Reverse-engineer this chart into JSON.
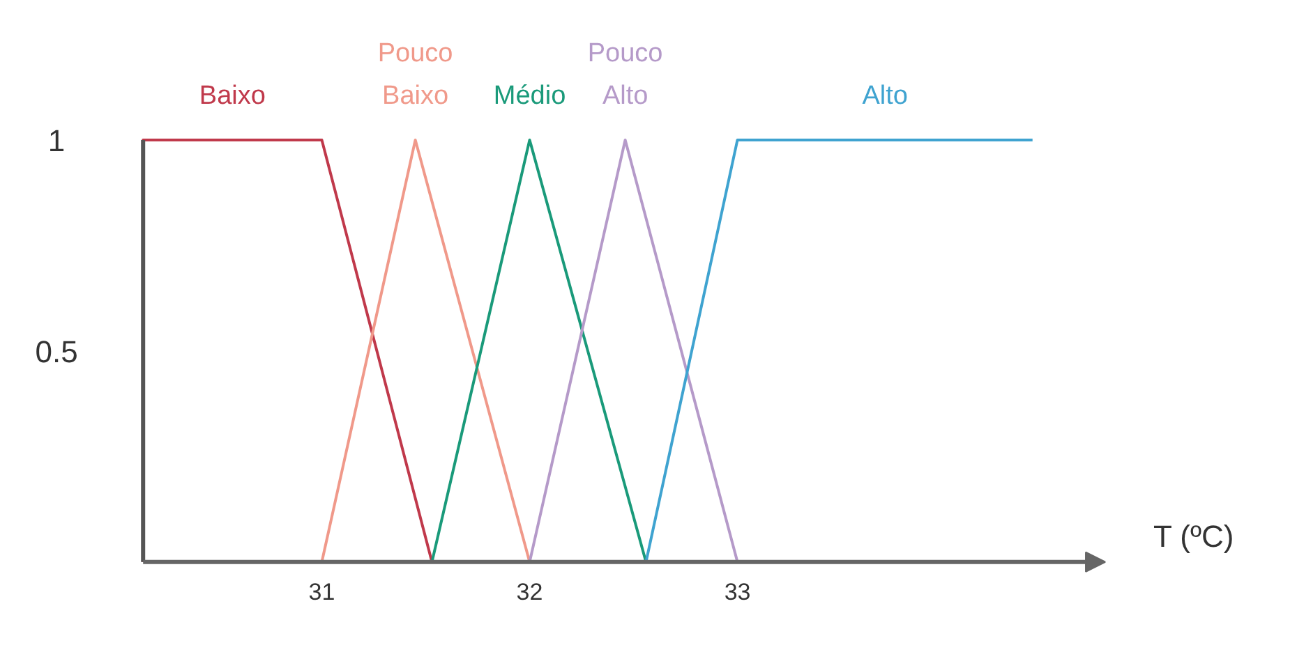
{
  "chart_data": {
    "type": "line",
    "xlabel": "T (ºC)",
    "xlim": [
      30.14,
      34.77
    ],
    "ylim": [
      0,
      1
    ],
    "xticks": [
      31,
      32,
      33
    ],
    "yticks": [
      0.5,
      1
    ],
    "grid": false,
    "marker": "none",
    "line_style": "solid",
    "series": [
      {
        "name": "Baixo",
        "color": "#c0394b",
        "x": [
          30.14,
          30.14,
          31,
          31.53
        ],
        "values": [
          0,
          1,
          1,
          0
        ]
      },
      {
        "name": "Pouco Baixo",
        "color": "#f0998a",
        "x": [
          31,
          31.45,
          32
        ],
        "values": [
          0,
          1,
          0
        ]
      },
      {
        "name": "Médio",
        "color": "#1a9a7a",
        "x": [
          31.53,
          32,
          32.56
        ],
        "values": [
          0,
          1,
          0
        ]
      },
      {
        "name": "Pouco Alto",
        "color": "#b59ac9",
        "x": [
          32,
          32.46,
          33
        ],
        "values": [
          0,
          1,
          0
        ]
      },
      {
        "name": "Alto",
        "color": "#3fa3d0",
        "x": [
          32.56,
          33,
          34.42
        ],
        "values": [
          0,
          1,
          1
        ]
      }
    ]
  }
}
